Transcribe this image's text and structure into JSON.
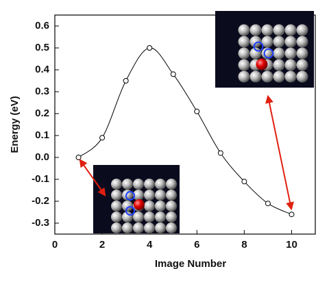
{
  "chart_data": {
    "type": "line",
    "x": [
      1,
      2,
      3,
      4,
      5,
      6,
      7,
      8,
      9,
      10
    ],
    "series": [
      {
        "color": "#000000",
        "values": [
          0.0,
          0.09,
          0.35,
          0.5,
          0.38,
          0.21,
          0.02,
          -0.11,
          -0.21,
          -0.26
        ]
      }
    ],
    "xlabel": "Image Number",
    "ylabel": "Energy (eV)",
    "xlim": [
      0,
      11
    ],
    "xticks": [
      0,
      2,
      4,
      6,
      8,
      10
    ],
    "ylim": [
      -0.35,
      0.65
    ],
    "yticks": [
      -0.3,
      -0.2,
      -0.1,
      {
        "value": 0,
        "label": "0.0"
      },
      0.1,
      0.2,
      0.3,
      0.4,
      0.5,
      0.6
    ]
  }
}
